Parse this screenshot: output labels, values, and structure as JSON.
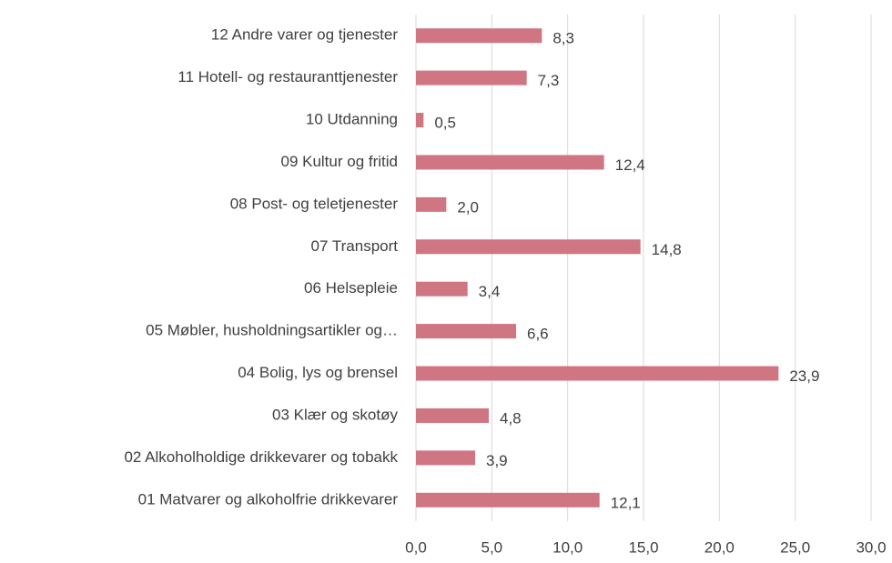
{
  "chart_data": {
    "type": "barh",
    "categories": [
      "12 Andre varer og tjenester",
      "11 Hotell- og restauranttjenester",
      "10 Utdanning",
      "09 Kultur og fritid",
      "08 Post- og teletjenester",
      "07 Transport",
      "06 Helsepleie",
      "05 Møbler, husholdningsartikler og…",
      "04 Bolig, lys og brensel",
      "03 Klær og skotøy",
      "02 Alkoholholdige drikkevarer og tobakk",
      "01 Matvarer og alkoholfrie drikkevarer"
    ],
    "values": [
      8.3,
      7.3,
      0.5,
      12.4,
      2.0,
      14.8,
      3.4,
      6.6,
      23.9,
      4.8,
      3.9,
      12.1
    ],
    "value_labels": [
      "8,3",
      "7,3",
      "0,5",
      "12,4",
      "2,0",
      "14,8",
      "3,4",
      "6,6",
      "23,9",
      "4,8",
      "3,9",
      "12,1"
    ],
    "color": "#d07582",
    "xlim": [
      0,
      30
    ],
    "xticks": [
      {
        "value": 0,
        "label": "0,0"
      },
      {
        "value": 5,
        "label": "5,0"
      },
      {
        "value": 10,
        "label": "10,0"
      },
      {
        "value": 15,
        "label": "15,0"
      },
      {
        "value": 20,
        "label": "20,0"
      },
      {
        "value": 25,
        "label": "25,0"
      },
      {
        "value": 30,
        "label": "30,0"
      }
    ],
    "grid": true
  }
}
